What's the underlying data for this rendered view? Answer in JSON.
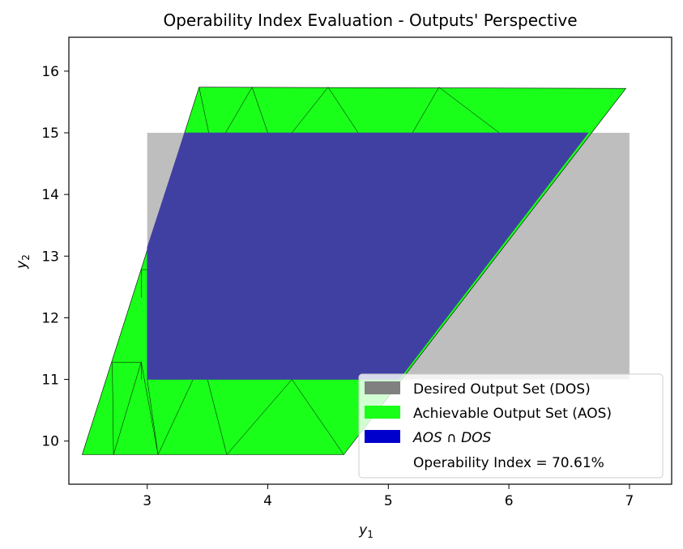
{
  "chart_data": {
    "type": "area",
    "title": "Operability Index Evaluation - Outputs' Perspective",
    "xlabel": "y",
    "xlabel_sub": "1",
    "ylabel": "y",
    "ylabel_sub": "2",
    "xlim": [
      2.35,
      7.35
    ],
    "ylim": [
      9.3,
      16.55
    ],
    "xticks": [
      3,
      4,
      5,
      6,
      7
    ],
    "yticks": [
      10,
      11,
      12,
      13,
      14,
      15,
      16
    ],
    "grid": false,
    "legend_position": "lower-right",
    "colors": {
      "dos": "#bebebe",
      "aos": "#19ff19",
      "intersection": "#4040a3",
      "edge": "#000000"
    },
    "series": [
      {
        "name": "Desired Output Set (DOS)",
        "legend_color": "#808080",
        "polygon": [
          [
            3.0,
            11.0
          ],
          [
            7.0,
            11.0
          ],
          [
            7.0,
            15.0
          ],
          [
            3.0,
            15.0
          ]
        ]
      },
      {
        "name": "Achievable Output Set (AOS)",
        "legend_color": "#19ff19",
        "polygon": [
          [
            2.46,
            9.78
          ],
          [
            4.63,
            9.78
          ],
          [
            6.97,
            15.72
          ],
          [
            3.43,
            15.74
          ]
        ],
        "triangulation_edges": [
          [
            [
              3.43,
              15.74
            ],
            [
              3.51,
              15.0
            ]
          ],
          [
            [
              3.87,
              15.74
            ],
            [
              3.65,
              15.0
            ]
          ],
          [
            [
              3.87,
              15.74
            ],
            [
              4.0,
              15.0
            ]
          ],
          [
            [
              4.5,
              15.74
            ],
            [
              4.2,
              15.0
            ]
          ],
          [
            [
              4.5,
              15.74
            ],
            [
              4.75,
              15.0
            ]
          ],
          [
            [
              5.42,
              15.74
            ],
            [
              5.2,
              15.0
            ]
          ],
          [
            [
              5.42,
              15.74
            ],
            [
              5.92,
              15.0
            ]
          ],
          [
            [
              2.95,
              12.78
            ],
            [
              3.0,
              12.78
            ]
          ],
          [
            [
              2.95,
              12.78
            ],
            [
              2.95,
              12.33
            ]
          ],
          [
            [
              2.71,
              11.28
            ],
            [
              2.95,
              11.28
            ]
          ],
          [
            [
              2.95,
              11.28
            ],
            [
              2.95,
              11.0
            ]
          ],
          [
            [
              2.71,
              11.28
            ],
            [
              2.72,
              9.78
            ]
          ],
          [
            [
              2.95,
              11.28
            ],
            [
              2.72,
              9.78
            ]
          ],
          [
            [
              3.0,
              11.0
            ],
            [
              3.09,
              9.78
            ]
          ],
          [
            [
              3.09,
              9.78
            ],
            [
              2.95,
              11.28
            ]
          ],
          [
            [
              3.09,
              9.78
            ],
            [
              3.38,
              11.0
            ]
          ],
          [
            [
              3.66,
              9.78
            ],
            [
              3.5,
              11.0
            ]
          ],
          [
            [
              3.66,
              9.78
            ],
            [
              4.2,
              11.0
            ]
          ],
          [
            [
              4.63,
              9.78
            ],
            [
              4.2,
              11.0
            ]
          ]
        ]
      },
      {
        "name": "AOS ∩ DOS",
        "legend_color": "#0000cc",
        "polygon": [
          [
            3.0,
            11.0
          ],
          [
            5.09,
            11.0
          ],
          [
            6.66,
            15.0
          ],
          [
            3.31,
            15.0
          ],
          [
            3.0,
            13.14
          ]
        ]
      }
    ],
    "legend": [
      {
        "label": "Desired Output Set (DOS)",
        "swatch": "#808080"
      },
      {
        "label": "Achievable Output Set (AOS)",
        "swatch": "#19ff19"
      },
      {
        "label_italic": "AOS",
        "label_mid": " ∩ ",
        "label_italic2": "DOS",
        "swatch": "#0000cc"
      },
      {
        "label": "Operability Index = 70.61%",
        "swatch": ""
      }
    ]
  }
}
